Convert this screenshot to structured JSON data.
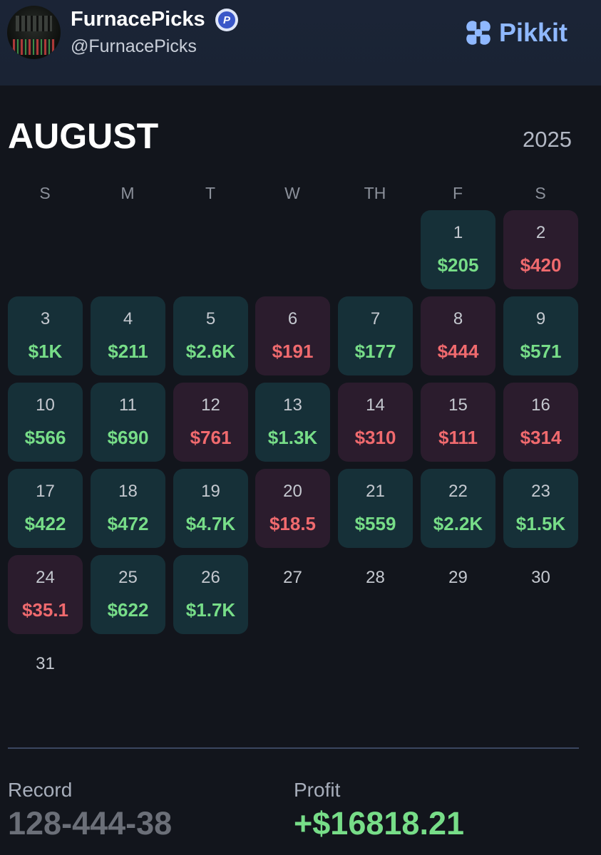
{
  "header": {
    "name": "FurnacePicks",
    "handle": "@FurnacePicks",
    "verified_letter": "P",
    "brand": "Pikkit",
    "brand_color": "#8fb8ff"
  },
  "calendar": {
    "month": "AUGUST",
    "year": "2025",
    "weekdays": [
      "S",
      "M",
      "T",
      "W",
      "TH",
      "F",
      "S"
    ],
    "days": [
      {
        "day": "1",
        "amount": "$205",
        "result": "win"
      },
      {
        "day": "2",
        "amount": "$420",
        "result": "loss"
      },
      {
        "day": "3",
        "amount": "$1K",
        "result": "win"
      },
      {
        "day": "4",
        "amount": "$211",
        "result": "win"
      },
      {
        "day": "5",
        "amount": "$2.6K",
        "result": "win"
      },
      {
        "day": "6",
        "amount": "$191",
        "result": "loss"
      },
      {
        "day": "7",
        "amount": "$177",
        "result": "win"
      },
      {
        "day": "8",
        "amount": "$444",
        "result": "loss"
      },
      {
        "day": "9",
        "amount": "$571",
        "result": "win"
      },
      {
        "day": "10",
        "amount": "$566",
        "result": "win"
      },
      {
        "day": "11",
        "amount": "$690",
        "result": "win"
      },
      {
        "day": "12",
        "amount": "$761",
        "result": "loss"
      },
      {
        "day": "13",
        "amount": "$1.3K",
        "result": "win"
      },
      {
        "day": "14",
        "amount": "$310",
        "result": "loss"
      },
      {
        "day": "15",
        "amount": "$111",
        "result": "loss"
      },
      {
        "day": "16",
        "amount": "$314",
        "result": "loss"
      },
      {
        "day": "17",
        "amount": "$422",
        "result": "win"
      },
      {
        "day": "18",
        "amount": "$472",
        "result": "win"
      },
      {
        "day": "19",
        "amount": "$4.7K",
        "result": "win"
      },
      {
        "day": "20",
        "amount": "$18.5",
        "result": "loss"
      },
      {
        "day": "21",
        "amount": "$559",
        "result": "win"
      },
      {
        "day": "22",
        "amount": "$2.2K",
        "result": "win"
      },
      {
        "day": "23",
        "amount": "$1.5K",
        "result": "win"
      },
      {
        "day": "24",
        "amount": "$35.1",
        "result": "loss"
      },
      {
        "day": "25",
        "amount": "$622",
        "result": "win"
      },
      {
        "day": "26",
        "amount": "$1.7K",
        "result": "win"
      },
      {
        "day": "27",
        "amount": "",
        "result": "none"
      },
      {
        "day": "28",
        "amount": "",
        "result": "none"
      },
      {
        "day": "29",
        "amount": "",
        "result": "none"
      },
      {
        "day": "30",
        "amount": "",
        "result": "none"
      },
      {
        "day": "31",
        "amount": "",
        "result": "none"
      }
    ],
    "colors": {
      "win_bg": "#163038",
      "loss_bg": "#2b1c2d",
      "win_text": "#77dd88",
      "loss_text": "#f06a6e"
    }
  },
  "stats": {
    "record_label": "Record",
    "record_value": "128-444-38",
    "profit_label": "Profit",
    "profit_value": "+$16818.21"
  }
}
